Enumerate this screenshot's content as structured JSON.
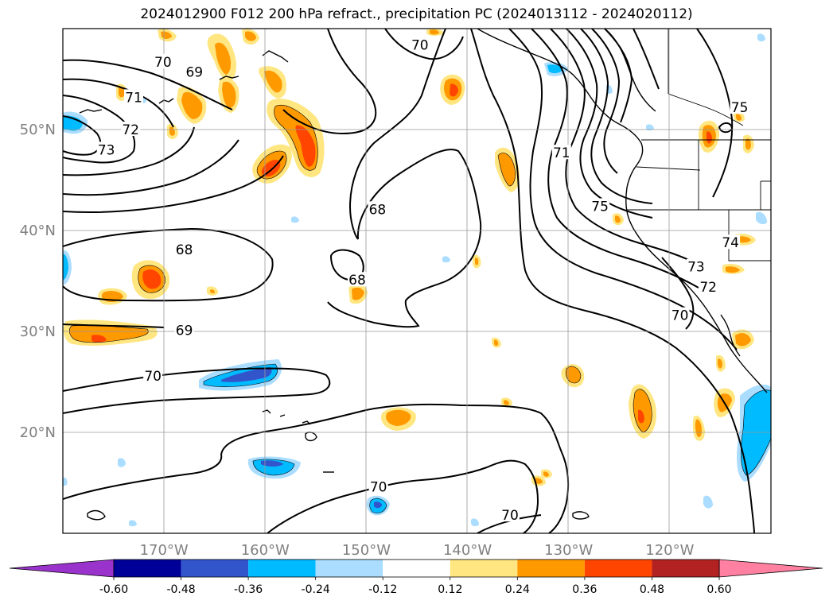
{
  "title": "2024012900 F012 200 hPa refract., precipitation PC (2024013112 - 2024020112)",
  "map": {
    "lon_range": [
      -180,
      -110
    ],
    "lat_range": [
      10,
      60
    ],
    "lon_ticks": [
      {
        "lon": -170,
        "label": "170°W"
      },
      {
        "lon": -160,
        "label": "160°W"
      },
      {
        "lon": -150,
        "label": "150°W"
      },
      {
        "lon": -140,
        "label": "140°W"
      },
      {
        "lon": -130,
        "label": "130°W"
      },
      {
        "lon": -120,
        "label": "120°W"
      }
    ],
    "lat_ticks": [
      {
        "lat": 20,
        "label": "20°N"
      },
      {
        "lat": 30,
        "label": "30°N"
      },
      {
        "lat": 40,
        "label": "40°N"
      },
      {
        "lat": 50,
        "label": "50°N"
      }
    ],
    "grid": true,
    "tick_label_color": "#808080",
    "contour_labels": [
      {
        "text": "70",
        "lon": -170.1,
        "lat": 56.7
      },
      {
        "text": "69",
        "lon": -167.0,
        "lat": 55.7
      },
      {
        "text": "71",
        "lon": -173.0,
        "lat": 53.2
      },
      {
        "text": "72",
        "lon": -173.3,
        "lat": 50.0
      },
      {
        "text": "73",
        "lon": -175.7,
        "lat": 48.0
      },
      {
        "text": "70",
        "lon": -144.7,
        "lat": 58.4
      },
      {
        "text": "68",
        "lon": -148.9,
        "lat": 42.1
      },
      {
        "text": "68",
        "lon": -168.0,
        "lat": 38.1
      },
      {
        "text": "68",
        "lon": -150.9,
        "lat": 35.1
      },
      {
        "text": "69",
        "lon": -168.0,
        "lat": 30.1
      },
      {
        "text": "70",
        "lon": -171.1,
        "lat": 25.6
      },
      {
        "text": "70",
        "lon": -148.8,
        "lat": 14.6
      },
      {
        "text": "70",
        "lon": -135.8,
        "lat": 11.8
      },
      {
        "text": "71",
        "lon": -130.7,
        "lat": 47.7
      },
      {
        "text": "75",
        "lon": -126.9,
        "lat": 42.4
      },
      {
        "text": "75",
        "lon": -113.1,
        "lat": 52.2
      },
      {
        "text": "74",
        "lon": -114.0,
        "lat": 38.8
      },
      {
        "text": "73",
        "lon": -117.4,
        "lat": 36.4
      },
      {
        "text": "72",
        "lon": -116.2,
        "lat": 34.4
      },
      {
        "text": "70",
        "lon": -119.0,
        "lat": 31.6
      }
    ]
  },
  "colorbar": {
    "levels": [
      "-0.60",
      "-0.48",
      "-0.36",
      "-0.24",
      "-0.12",
      "0.12",
      "0.24",
      "0.36",
      "0.48",
      "0.60"
    ],
    "colors": [
      "#9933cc",
      "#000099",
      "#3355cc",
      "#00bbff",
      "#aaddff",
      "#ffffff",
      "#ffe680",
      "#ff9900",
      "#ff4500",
      "#b22222",
      "#ff80a0"
    ],
    "extend": "both"
  },
  "colors": {
    "precip_positive": [
      "#ffe680",
      "#ff9900",
      "#ff4500"
    ],
    "precip_negative": [
      "#aaddff",
      "#00bbff",
      "#3355cc"
    ]
  }
}
